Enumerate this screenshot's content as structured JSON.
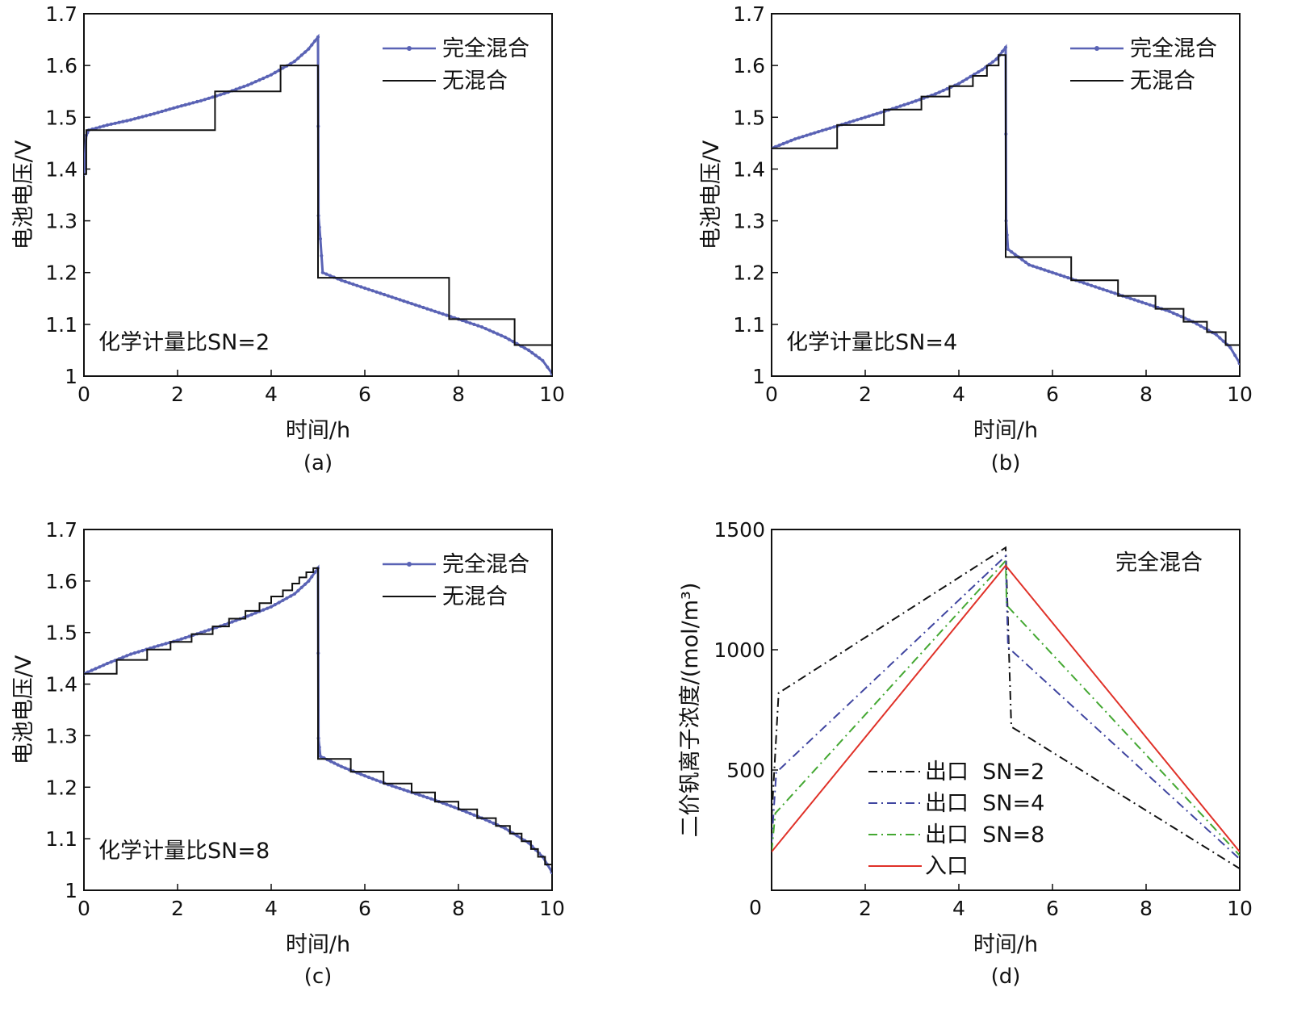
{
  "chart_data": [
    {
      "panel": "a",
      "type": "line",
      "caption": "(a)",
      "xlabel": "时间/h",
      "ylabel": "电池电压/V",
      "xlim": [
        0,
        10
      ],
      "ylim": [
        1,
        1.7
      ],
      "xticks": [
        "0",
        "2",
        "4",
        "6",
        "8",
        "10"
      ],
      "yticks": [
        "1",
        "1.1",
        "1.2",
        "1.3",
        "1.4",
        "1.5",
        "1.6",
        "1.7"
      ],
      "annotation": "化学计量比SN=2",
      "legend_position": "top-right",
      "colors": {
        "full_mix": "#5a63b5",
        "no_mix": "#111111"
      },
      "series": [
        {
          "name": "完全混合",
          "style": "line-with-dots",
          "x": [
            0,
            0.05,
            0.1,
            0.5,
            1,
            1.5,
            2,
            2.5,
            3,
            3.5,
            4,
            4.5,
            4.8,
            5,
            5.01,
            5.05,
            5.1,
            5.5,
            6,
            6.5,
            7,
            7.5,
            8,
            8.5,
            9,
            9.5,
            9.8,
            10
          ],
          "y": [
            1.39,
            1.465,
            1.475,
            1.485,
            1.495,
            1.507,
            1.52,
            1.532,
            1.546,
            1.562,
            1.582,
            1.608,
            1.632,
            1.655,
            1.31,
            1.265,
            1.2,
            1.185,
            1.17,
            1.155,
            1.14,
            1.125,
            1.11,
            1.095,
            1.075,
            1.05,
            1.03,
            1.005
          ]
        },
        {
          "name": "无混合",
          "style": "step",
          "x": [
            0,
            0.05,
            0.05,
            2.8,
            2.8,
            4.2,
            4.2,
            5,
            5,
            7.8,
            7.8,
            9.2,
            9.2,
            10,
            10
          ],
          "y": [
            1.39,
            1.39,
            1.475,
            1.475,
            1.55,
            1.55,
            1.6,
            1.6,
            1.19,
            1.19,
            1.11,
            1.11,
            1.06,
            1.06,
            1.005
          ]
        }
      ]
    },
    {
      "panel": "b",
      "type": "line",
      "caption": "(b)",
      "xlabel": "时间/h",
      "ylabel": "电池电压/V",
      "xlim": [
        0,
        10
      ],
      "ylim": [
        1,
        1.7
      ],
      "xticks": [
        "0",
        "2",
        "4",
        "6",
        "8",
        "10"
      ],
      "yticks": [
        "1",
        "1.1",
        "1.2",
        "1.3",
        "1.4",
        "1.5",
        "1.6",
        "1.7"
      ],
      "annotation": "化学计量比SN=4",
      "legend_position": "top-right",
      "colors": {
        "full_mix": "#5a63b5",
        "no_mix": "#111111"
      },
      "series": [
        {
          "name": "完全混合",
          "style": "line-with-dots",
          "x": [
            0,
            0.5,
            1,
            1.5,
            2,
            2.5,
            3,
            3.5,
            4,
            4.5,
            4.8,
            5,
            5.01,
            5.05,
            5.5,
            6,
            6.5,
            7,
            7.5,
            8,
            8.5,
            9,
            9.5,
            9.8,
            10
          ],
          "y": [
            1.44,
            1.458,
            1.472,
            1.486,
            1.5,
            1.514,
            1.529,
            1.545,
            1.565,
            1.592,
            1.612,
            1.635,
            1.3,
            1.245,
            1.215,
            1.2,
            1.185,
            1.17,
            1.155,
            1.14,
            1.125,
            1.105,
            1.08,
            1.055,
            1.025
          ]
        },
        {
          "name": "无混合",
          "style": "step",
          "x": [
            0,
            1.4,
            1.4,
            2.4,
            2.4,
            3.2,
            3.2,
            3.8,
            3.8,
            4.3,
            4.3,
            4.6,
            4.6,
            4.85,
            4.85,
            5,
            5,
            6.4,
            6.4,
            7.4,
            7.4,
            8.2,
            8.2,
            8.8,
            8.8,
            9.3,
            9.3,
            9.7,
            9.7,
            10,
            10
          ],
          "y": [
            1.44,
            1.44,
            1.485,
            1.485,
            1.515,
            1.515,
            1.54,
            1.54,
            1.56,
            1.56,
            1.58,
            1.58,
            1.6,
            1.6,
            1.62,
            1.62,
            1.23,
            1.23,
            1.185,
            1.185,
            1.155,
            1.155,
            1.13,
            1.13,
            1.105,
            1.105,
            1.085,
            1.085,
            1.06,
            1.06,
            1.025
          ]
        }
      ]
    },
    {
      "panel": "c",
      "type": "line",
      "caption": "(c)",
      "xlabel": "时间/h",
      "ylabel": "电池电压/V",
      "xlim": [
        0,
        10
      ],
      "ylim": [
        1,
        1.7
      ],
      "xticks": [
        "0",
        "2",
        "4",
        "6",
        "8",
        "10"
      ],
      "yticks": [
        "1",
        "1.1",
        "1.2",
        "1.3",
        "1.4",
        "1.5",
        "1.6",
        "1.7"
      ],
      "annotation": "化学计量比SN=8",
      "legend_position": "top-right",
      "colors": {
        "full_mix": "#5a63b5",
        "no_mix": "#111111"
      },
      "series": [
        {
          "name": "完全混合",
          "style": "line-with-dots",
          "x": [
            0,
            0.5,
            1,
            1.5,
            2,
            2.5,
            3,
            3.5,
            4,
            4.5,
            4.8,
            5,
            5.01,
            5.05,
            5.5,
            6,
            6.5,
            7,
            7.5,
            8,
            8.5,
            9,
            9.5,
            9.8,
            10
          ],
          "y": [
            1.42,
            1.44,
            1.458,
            1.472,
            1.485,
            1.5,
            1.515,
            1.532,
            1.55,
            1.575,
            1.6,
            1.625,
            1.295,
            1.26,
            1.24,
            1.222,
            1.205,
            1.19,
            1.175,
            1.158,
            1.14,
            1.12,
            1.092,
            1.065,
            1.035
          ]
        },
        {
          "name": "无混合",
          "style": "step",
          "x": [
            0,
            0.7,
            0.7,
            1.35,
            1.35,
            1.85,
            1.85,
            2.3,
            2.3,
            2.75,
            2.75,
            3.1,
            3.1,
            3.45,
            3.45,
            3.75,
            3.75,
            4.0,
            4.0,
            4.25,
            4.25,
            4.45,
            4.45,
            4.6,
            4.6,
            4.75,
            4.75,
            4.9,
            4.9,
            5,
            5,
            5.7,
            5.7,
            6.4,
            6.4,
            7,
            7,
            7.5,
            7.5,
            8,
            8,
            8.4,
            8.4,
            8.8,
            8.8,
            9.1,
            9.1,
            9.35,
            9.35,
            9.55,
            9.55,
            9.7,
            9.7,
            9.85,
            9.85,
            10,
            10
          ],
          "y": [
            1.42,
            1.42,
            1.447,
            1.447,
            1.467,
            1.467,
            1.482,
            1.482,
            1.497,
            1.497,
            1.512,
            1.512,
            1.527,
            1.527,
            1.542,
            1.542,
            1.557,
            1.557,
            1.57,
            1.57,
            1.582,
            1.582,
            1.595,
            1.595,
            1.607,
            1.607,
            1.617,
            1.617,
            1.625,
            1.625,
            1.255,
            1.255,
            1.23,
            1.23,
            1.207,
            1.207,
            1.19,
            1.19,
            1.172,
            1.172,
            1.157,
            1.157,
            1.14,
            1.14,
            1.125,
            1.125,
            1.11,
            1.11,
            1.095,
            1.095,
            1.08,
            1.08,
            1.065,
            1.065,
            1.05,
            1.05,
            1.035
          ]
        }
      ]
    },
    {
      "panel": "d",
      "type": "line",
      "caption": "(d)",
      "xlabel": "时间/h",
      "ylabel": "二价钒离子浓度/(mol/m³)",
      "xlim": [
        0,
        10
      ],
      "ylim": [
        0,
        1500
      ],
      "xticks": [
        "0",
        "2",
        "4",
        "6",
        "8",
        "10"
      ],
      "yticks": [
        "500",
        "1000",
        "1500"
      ],
      "annotation": "完全混合",
      "legend_position": "bottom-left",
      "series": [
        {
          "name": "出口  SN=2",
          "style": "dash-dot",
          "color": "#111111",
          "x": [
            0,
            0.15,
            5,
            5.12,
            10
          ],
          "y": [
            300,
            820,
            1425,
            680,
            90
          ]
        },
        {
          "name": "出口  SN=4",
          "style": "dash-dot",
          "color": "#3f45a0",
          "x": [
            0,
            0.1,
            5,
            5.05,
            10
          ],
          "y": [
            200,
            490,
            1390,
            1010,
            130
          ]
        },
        {
          "name": "出口  SN=8",
          "style": "dash-dot",
          "color": "#44a832",
          "x": [
            0,
            0.08,
            5,
            5.02,
            10
          ],
          "y": [
            160,
            320,
            1370,
            1185,
            145
          ]
        },
        {
          "name": "入口",
          "style": "solid",
          "color": "#e03128",
          "x": [
            0,
            5,
            10
          ],
          "y": [
            160,
            1350,
            160
          ]
        }
      ]
    }
  ]
}
